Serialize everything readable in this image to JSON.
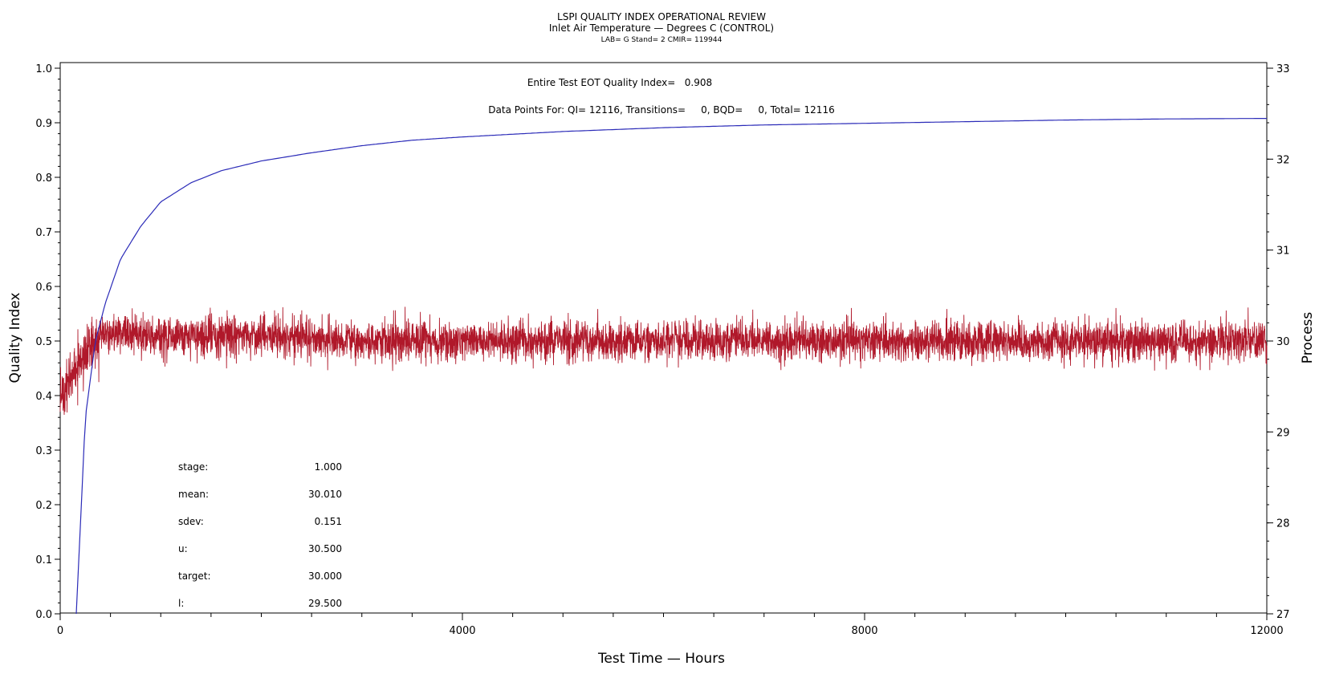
{
  "chart_data": {
    "type": "line",
    "title": "LSPI QUALITY INDEX OPERATIONAL REVIEW",
    "subtitle": "Inlet Air Temperature — Degrees C (CONTROL)",
    "subtitle2": "LAB= G Stand= 2 CMIR= 119944",
    "annotations": {
      "eot": "Entire Test EOT Quality Index=   0.908",
      "points": "Data Points For: QI= 12116, Transitions=     0, BQD=     0, Total= 12116"
    },
    "xlabel": "Test Time — Hours",
    "ylabel": "Quality Index",
    "y2label": "Process",
    "xlim": [
      0,
      12000
    ],
    "ylim": [
      0.0,
      1.0
    ],
    "y2lim": [
      27,
      33
    ],
    "x_ticks": [
      0,
      4000,
      8000,
      12000
    ],
    "x_tick_labels": [
      "0",
      "4000",
      "8000",
      "12000"
    ],
    "y_ticks": [
      0.0,
      0.1,
      0.2,
      0.3,
      0.4,
      0.5,
      0.6,
      0.7,
      0.8,
      0.9,
      1.0
    ],
    "y_tick_labels": [
      "0.0",
      "0.1",
      "0.2",
      "0.3",
      "0.4",
      "0.5",
      "0.6",
      "0.7",
      "0.8",
      "0.9",
      "1.0"
    ],
    "y2_ticks": [
      27,
      28,
      29,
      30,
      31,
      32,
      33
    ],
    "y2_tick_labels": [
      "27",
      "28",
      "29",
      "30",
      "31",
      "32",
      "33"
    ],
    "grid": false,
    "series": [
      {
        "color": "#2b2bb8",
        "axis": "left",
        "x": [
          160,
          250,
          350,
          450,
          600,
          800,
          1000,
          1300,
          1600,
          2000,
          2500,
          3000,
          3500,
          4000,
          5000,
          6000,
          7000,
          8000,
          9000,
          10000,
          11000,
          12000
        ],
        "y": [
          0.0,
          0.36,
          0.5,
          0.57,
          0.65,
          0.71,
          0.755,
          0.79,
          0.812,
          0.83,
          0.845,
          0.858,
          0.868,
          0.874,
          0.884,
          0.891,
          0.896,
          0.899,
          0.902,
          0.905,
          0.907,
          0.908
        ]
      },
      {
        "color": "#b0182a",
        "axis": "right",
        "x": [
          0,
          50,
          100,
          150,
          200,
          250,
          300,
          400,
          500,
          700,
          1000,
          1500,
          2000,
          3000,
          4000,
          5000,
          6000,
          7000,
          8000,
          9000,
          10000,
          11000,
          12000
        ],
        "y": [
          29.3,
          29.5,
          29.55,
          29.7,
          29.8,
          29.85,
          29.95,
          30.05,
          30.1,
          30.1,
          30.05,
          30.05,
          30.05,
          30.0,
          30.0,
          30.0,
          30.0,
          30.0,
          30.0,
          30.0,
          30.0,
          30.0,
          30.0
        ],
        "noise_sdev": 0.151
      }
    ],
    "stats": [
      {
        "label": "stage:",
        "value": "1.000"
      },
      {
        "label": "mean:",
        "value": "30.010"
      },
      {
        "label": "sdev:",
        "value": "0.151"
      },
      {
        "label": "u:",
        "value": "30.500"
      },
      {
        "label": "target:",
        "value": "30.000"
      },
      {
        "label": "l:",
        "value": "29.500"
      }
    ]
  }
}
